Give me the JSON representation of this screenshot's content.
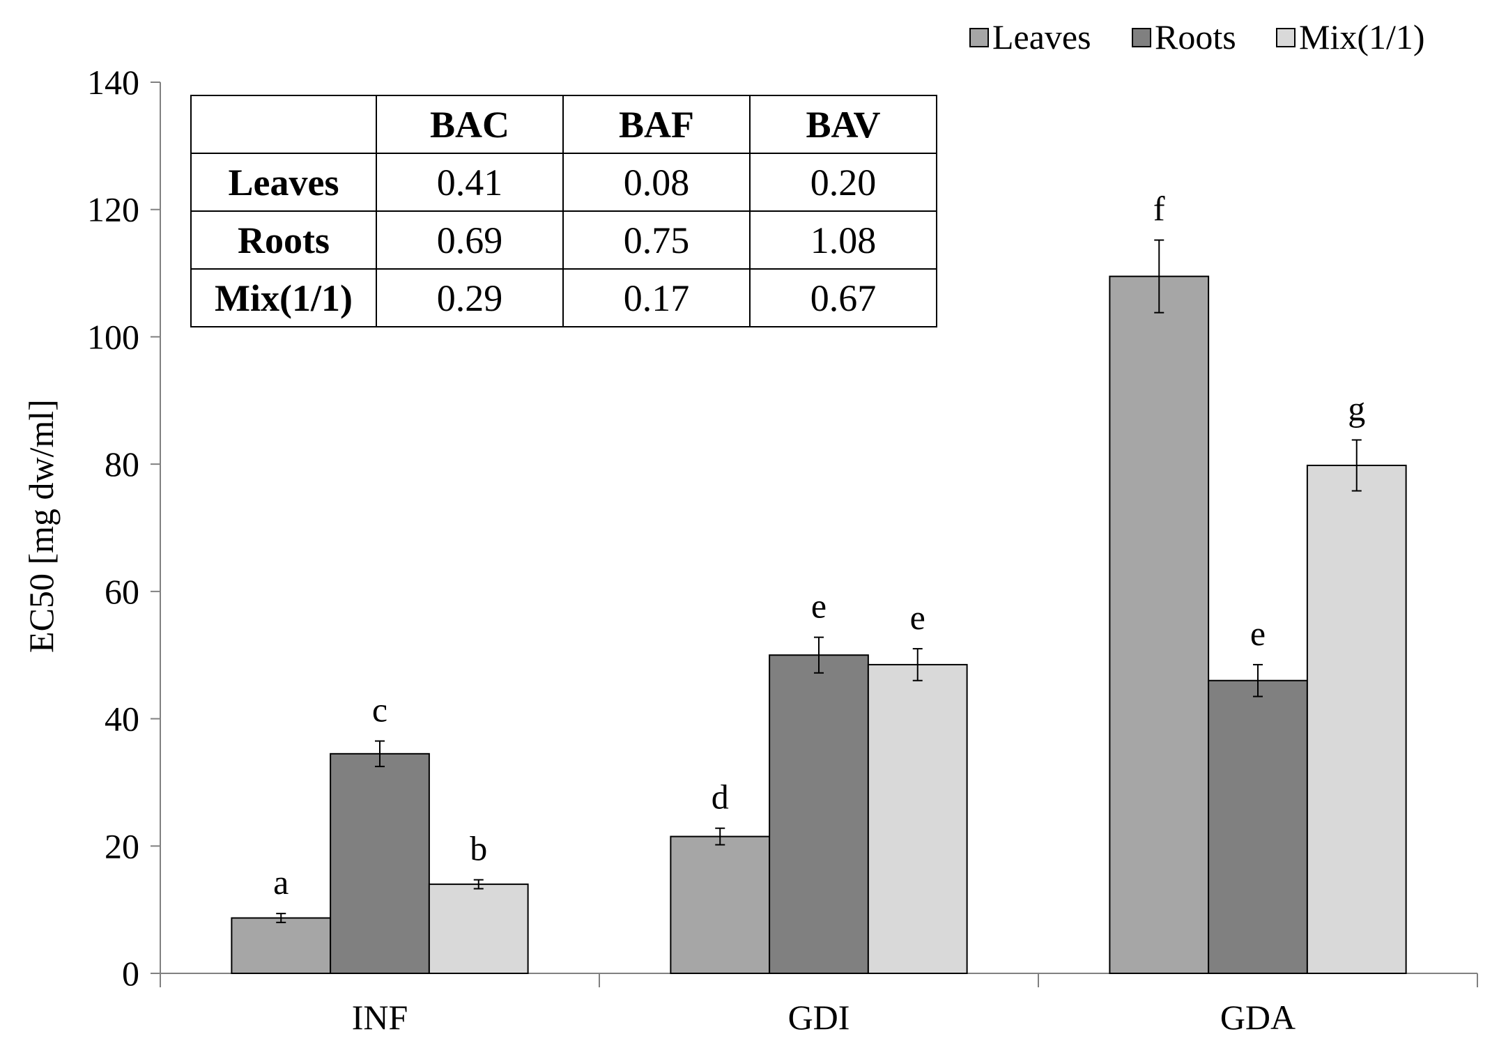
{
  "chart_data": {
    "type": "bar",
    "title": "",
    "xlabel": "",
    "ylabel": "EC50 [mg dw/ml]",
    "ylim": [
      0,
      140
    ],
    "yticks": [
      0,
      20,
      40,
      60,
      80,
      100,
      120,
      140
    ],
    "categories": [
      "INF",
      "GDI",
      "GDA"
    ],
    "series": [
      {
        "name": "Leaves",
        "color": "#a6a6a6",
        "values": [
          8.7,
          21.5,
          109.5
        ],
        "errors": [
          0.7,
          1.3,
          5.7
        ],
        "labels": [
          "a",
          "d",
          "f"
        ]
      },
      {
        "name": "Roots",
        "color": "#808080",
        "values": [
          34.5,
          50.0,
          46.0
        ],
        "errors": [
          2.0,
          2.8,
          2.5
        ],
        "labels": [
          "c",
          "e",
          "e"
        ]
      },
      {
        "name": "Mix(1/1)",
        "color": "#d9d9d9",
        "values": [
          14.0,
          48.5,
          79.8
        ],
        "errors": [
          0.7,
          2.5,
          4.0
        ],
        "labels": [
          "b",
          "e",
          "g"
        ]
      }
    ],
    "legend_position": "top-right",
    "grid": false
  },
  "inset_table": {
    "header": [
      "",
      "BAC",
      "BAF",
      "BAV"
    ],
    "rows": [
      {
        "label": "Leaves",
        "values": [
          "0.41",
          "0.08",
          "0.20"
        ]
      },
      {
        "label": "Roots",
        "values": [
          "0.69",
          "0.75",
          "1.08"
        ]
      },
      {
        "label": "Mix(1/1)",
        "values": [
          "0.29",
          "0.17",
          "0.67"
        ]
      }
    ]
  }
}
